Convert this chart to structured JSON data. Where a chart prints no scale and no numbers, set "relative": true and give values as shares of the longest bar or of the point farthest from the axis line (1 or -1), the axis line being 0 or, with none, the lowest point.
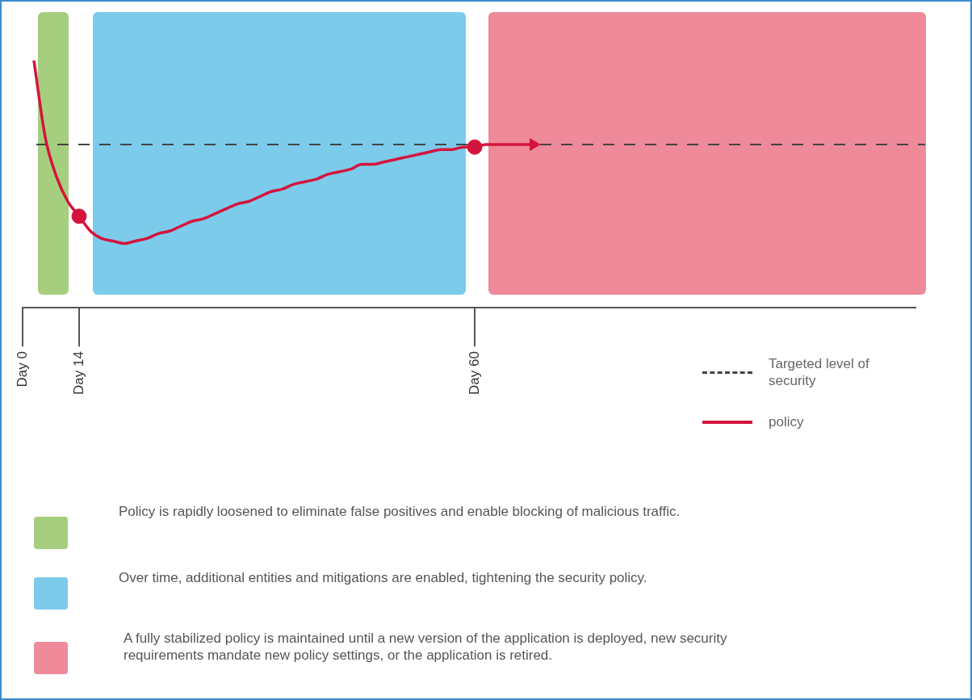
{
  "chart_data": {
    "type": "line",
    "relative": true,
    "tick_labels": "x",
    "legend": "bottom right",
    "categories": [
      "Day 0",
      null,
      null,
      null,
      null,
      "Day 14",
      null,
      null,
      null,
      null,
      null,
      null,
      null,
      null,
      null,
      null,
      null,
      null,
      null,
      null,
      null,
      null,
      null,
      null,
      null,
      null,
      null,
      null,
      null,
      null,
      null,
      null,
      null,
      null,
      null,
      null,
      null,
      null,
      null,
      null,
      "Day 60",
      null,
      null,
      null,
      null,
      null,
      null,
      null,
      null,
      null,
      null,
      null,
      null,
      null,
      null,
      null,
      null,
      null,
      null,
      null,
      null,
      null,
      null,
      null,
      null,
      null,
      null,
      null,
      null,
      null,
      null,
      null,
      null,
      null,
      null,
      null,
      null,
      null,
      null,
      null
    ],
    "series": [
      {
        "name": "policy",
        "color": "#d4143c",
        "values": [
          null,
          1.0,
          0.69,
          0.53,
          0.43,
          0.37,
          0.31,
          0.28,
          0.27,
          0.26,
          0.27,
          0.28,
          0.3,
          0.31,
          0.33,
          0.35,
          0.36,
          0.38,
          0.4,
          0.42,
          0.43,
          0.45,
          0.47,
          0.48,
          0.5,
          0.51,
          0.52,
          0.54,
          0.55,
          0.56,
          0.58,
          0.58,
          0.59,
          0.6,
          0.61,
          0.62,
          0.63,
          0.64,
          0.64,
          0.65,
          0.65,
          0.66,
          0.66,
          0.66,
          0.66,
          0.66,
          null,
          null,
          null,
          null,
          null,
          null,
          null,
          null,
          null,
          null,
          null,
          null,
          null,
          null,
          null,
          null,
          null,
          null,
          null,
          null,
          null,
          null,
          null,
          null,
          null,
          null,
          null,
          null,
          null,
          null,
          null,
          null,
          null,
          null
        ]
      },
      {
        "type": "scatter",
        "color": "#d4143c",
        "marker": "circle",
        "x": [
          "Day 14",
          "Day 60"
        ],
        "values": [
          0.37,
          0.65
        ]
      }
    ],
    "ref_lines": [
      {
        "axis": "y",
        "value": 0.66,
        "label": "Targeted level of security",
        "color": "#444444",
        "line_style": "dashed"
      }
    ],
    "annotations": [
      "Policy is rapidly loosened to eliminate false positives and enable blocking of malicious traffic.",
      "Over time, additional entities and mitigations are enabled, tightening the security policy.",
      "A fully stabilized policy is maintained until a new version of the application is deployed, new security requirements mandate new policy settings, or the application is retired."
    ]
  }
}
